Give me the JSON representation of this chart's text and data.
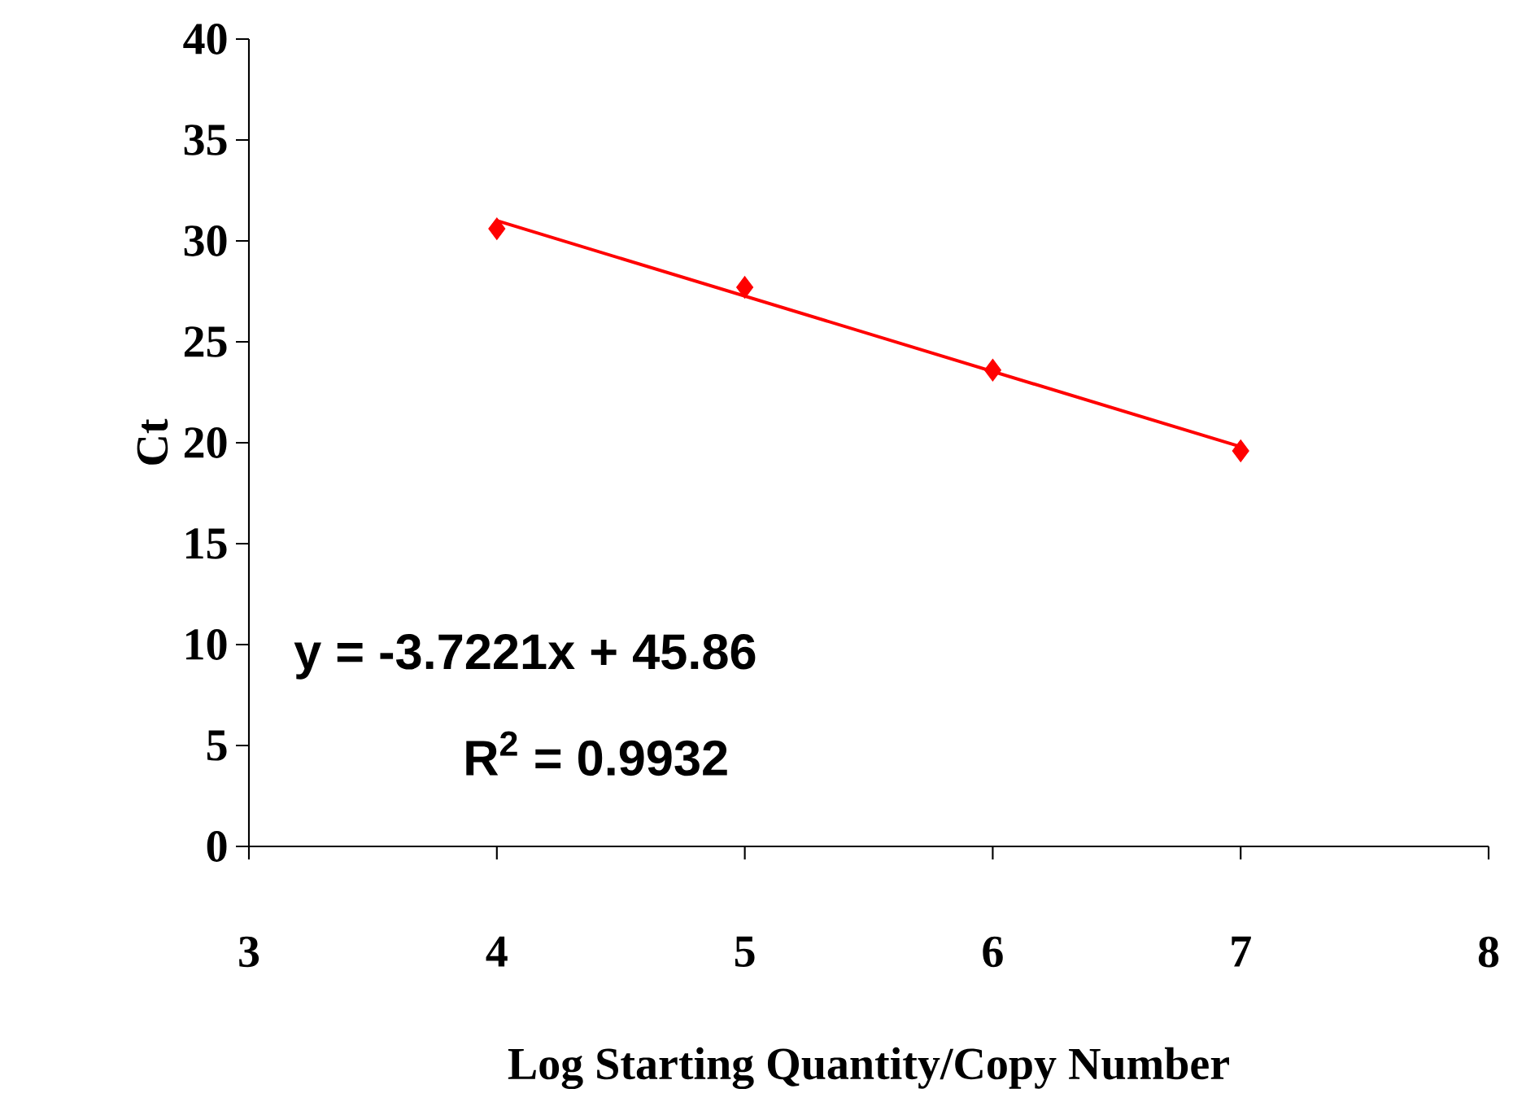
{
  "chart_data": {
    "type": "scatter",
    "xlabel": "Log Starting Quantity/Copy Number",
    "ylabel": "Ct",
    "xlim": [
      3,
      8
    ],
    "ylim": [
      0,
      40
    ],
    "xticks": [
      3,
      4,
      5,
      6,
      7,
      8
    ],
    "yticks": [
      0,
      5,
      10,
      15,
      20,
      25,
      30,
      35,
      40
    ],
    "series": [
      {
        "color": "#ff0000",
        "marker": "diamond",
        "x": [
          4,
          5,
          6,
          7
        ],
        "values": [
          30.6,
          27.7,
          23.6,
          19.6
        ]
      },
      {
        "type": "line",
        "color": "#ff0000",
        "marker": "none",
        "x": [
          4,
          7
        ],
        "values": [
          31.0,
          19.8
        ]
      }
    ],
    "annotations": [
      "y = -3.7221x + 45.86",
      "R$^{2}$ = 0.9932"
    ]
  }
}
